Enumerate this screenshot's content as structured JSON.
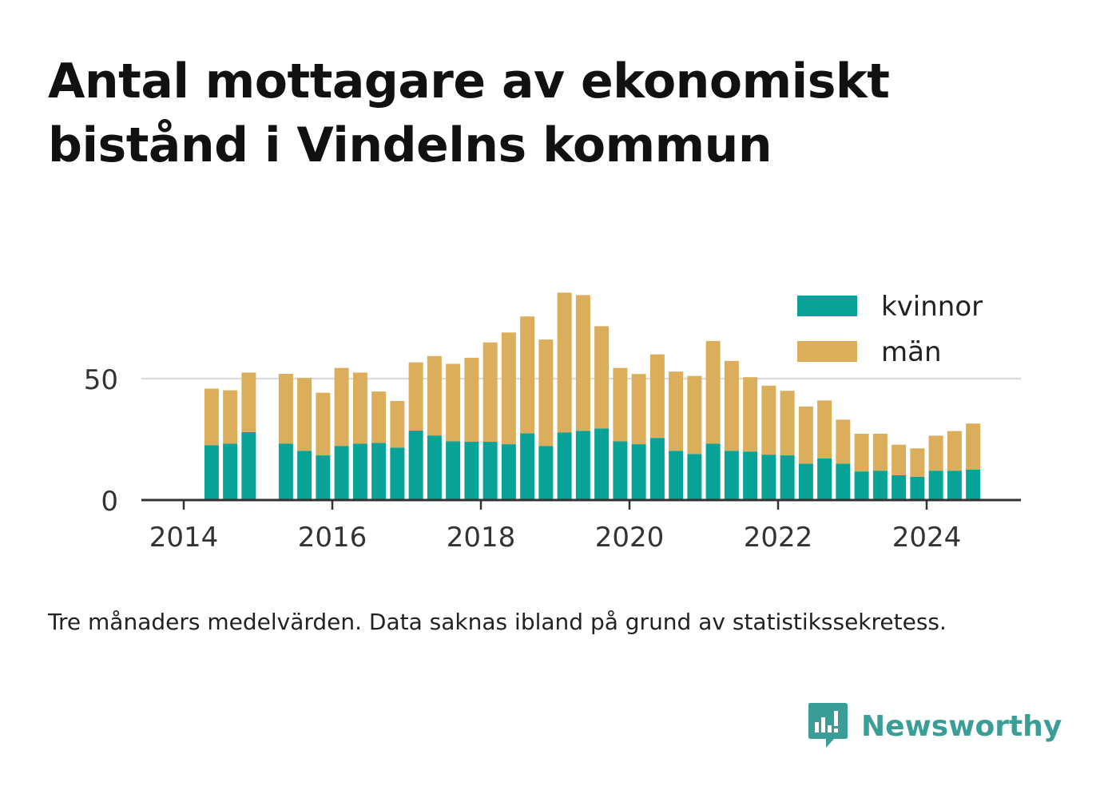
{
  "title": "Antal mottagare av ekonomiskt bistånd i Vindelns kommun",
  "note": "Tre månaders medelvärden. Data saknas ibland på grund av statistikssekretess.",
  "brand": {
    "name": "Newsworthy"
  },
  "colors": {
    "kvinnor": "#08a396",
    "man": "#dbae5c",
    "grid": "#dddddd",
    "axis": "#333333",
    "text": "#333333"
  },
  "chart_data": {
    "type": "bar",
    "stacked": true,
    "grid": true,
    "legend_position": "top-right",
    "x_ticks": [
      "2014",
      "2016",
      "2018",
      "2020",
      "2022",
      "2024"
    ],
    "y_ticks": [
      "0",
      "50"
    ],
    "ylim": [
      0,
      88
    ],
    "x": [
      "2014-04",
      "2014-07",
      "2014-10",
      "2015-04",
      "2015-07",
      "2015-10",
      "2016-01",
      "2016-04",
      "2016-07",
      "2016-10",
      "2017-01",
      "2017-04",
      "2017-07",
      "2017-10",
      "2018-01",
      "2018-04",
      "2018-07",
      "2018-10",
      "2019-01",
      "2019-04",
      "2019-07",
      "2019-10",
      "2020-01",
      "2020-04",
      "2020-07",
      "2020-10",
      "2021-01",
      "2021-04",
      "2021-07",
      "2021-10",
      "2022-01",
      "2022-04",
      "2022-07",
      "2022-10",
      "2023-01",
      "2023-04",
      "2023-07",
      "2023-10",
      "2024-01",
      "2024-04",
      "2024-07"
    ],
    "series": [
      {
        "name": "kvinnor",
        "values": [
          22.6,
          23.2,
          28,
          23.2,
          20.3,
          18.4,
          22.3,
          23.2,
          23.5,
          21.6,
          28.6,
          26.6,
          24.2,
          24,
          24,
          23,
          27.5,
          22.3,
          27.8,
          28.5,
          29.5,
          24.2,
          23,
          25.6,
          20.3,
          19,
          23.2,
          20.3,
          20,
          18.7,
          18.4,
          15,
          17.1,
          15,
          11.8,
          12.1,
          10.2,
          9.6,
          12.1,
          12.1,
          12.5
        ]
      },
      {
        "name": "män",
        "values": [
          23.3,
          22,
          24.5,
          28.8,
          30,
          25.8,
          32.1,
          29.3,
          21.2,
          19.2,
          28.1,
          32.7,
          31.9,
          34.6,
          40.9,
          46,
          48.1,
          43.8,
          57.6,
          55.9,
          42.1,
          30.2,
          28.9,
          34.4,
          32.6,
          32.1,
          42.3,
          37,
          30.6,
          28.4,
          26.6,
          23.5,
          23.9,
          18.1,
          15.5,
          15.2,
          12.6,
          11.7,
          14.4,
          16.3,
          19
        ]
      }
    ]
  }
}
